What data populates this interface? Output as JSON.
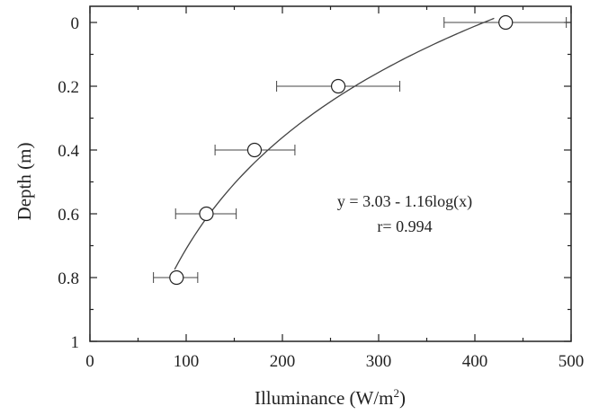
{
  "chart_data": {
    "type": "scatter",
    "title": "",
    "xlabel": "Illuminance (W/m",
    "xlabel_sup": "2",
    "xlabel_suffix": ")",
    "ylabel": "Depth (m)",
    "xlim": [
      0,
      500
    ],
    "ylim": [
      0,
      1
    ],
    "y_inverted": true,
    "x_ticks": [
      0,
      100,
      200,
      300,
      400,
      500
    ],
    "y_ticks": [
      0,
      0.2,
      0.4,
      0.6,
      0.8,
      1
    ],
    "x_tick_labels": [
      "0",
      "100",
      "200",
      "300",
      "400",
      "500"
    ],
    "y_tick_labels": [
      "0",
      "0.2",
      "0.4",
      "0.6",
      "0.8",
      "1"
    ],
    "grid": false,
    "points": [
      {
        "x": 432,
        "y": 0.0,
        "xerr_low": 368,
        "xerr_high": 495
      },
      {
        "x": 258,
        "y": 0.2,
        "xerr_low": 194,
        "xerr_high": 322
      },
      {
        "x": 171,
        "y": 0.4,
        "xerr_low": 130,
        "xerr_high": 213
      },
      {
        "x": 121,
        "y": 0.6,
        "xerr_low": 89,
        "xerr_high": 152
      },
      {
        "x": 90,
        "y": 0.8,
        "xerr_low": 66,
        "xerr_high": 112
      }
    ],
    "fit": {
      "coef_a": 3.03,
      "coef_b": 1.16,
      "x_range": [
        88,
        420
      ]
    },
    "annotation": {
      "equation": "y = 3.03 - 1.16log(x)",
      "r_text": "r= 0.994"
    }
  }
}
